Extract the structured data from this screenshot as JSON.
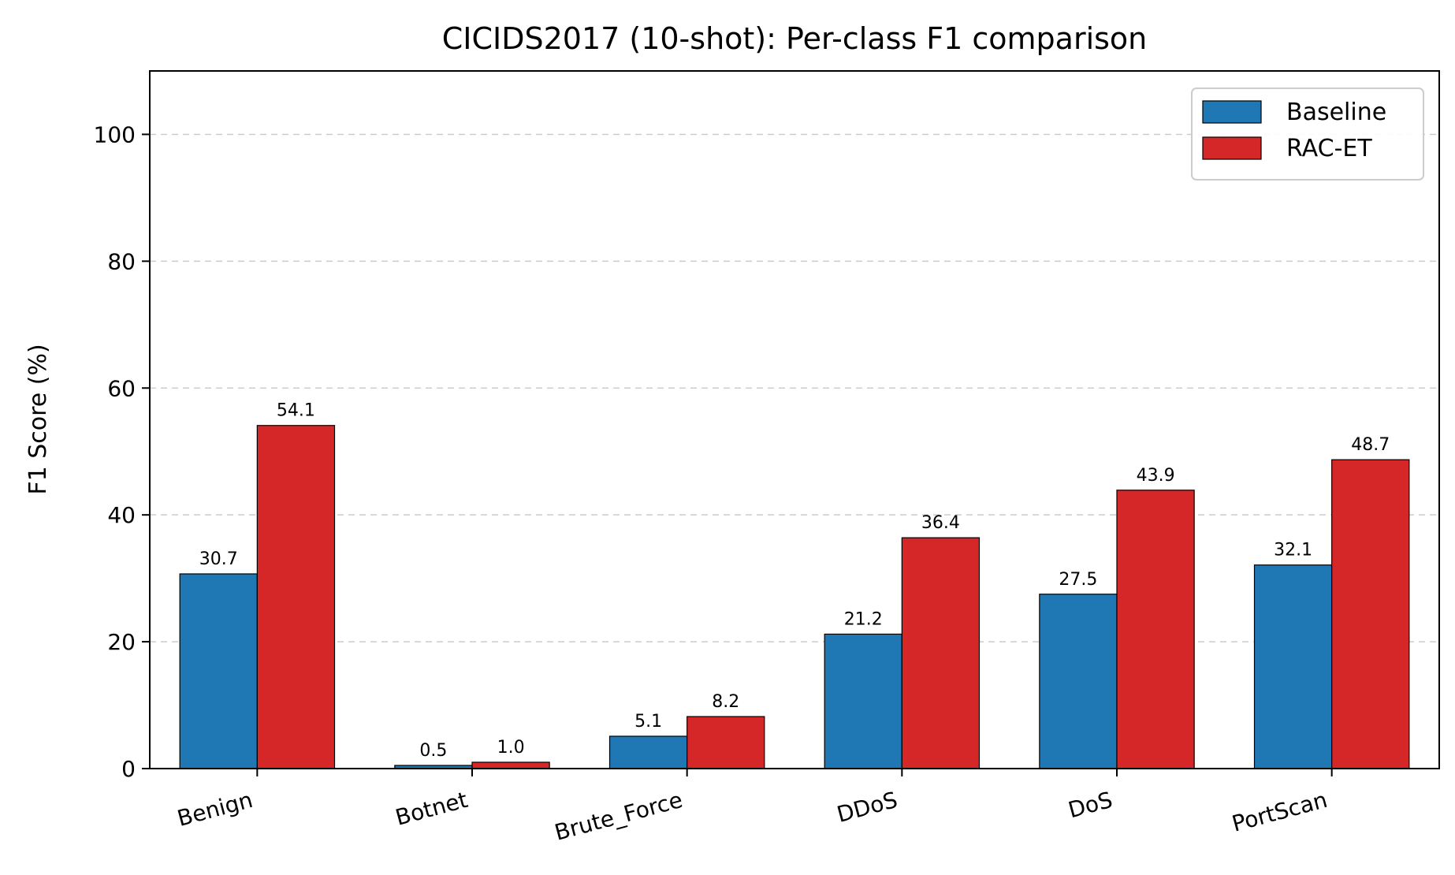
{
  "chart_data": {
    "type": "bar",
    "title": "CICIDS2017 (10-shot): Per-class F1 comparison",
    "xlabel": "",
    "ylabel": "F1 Score (%)",
    "ylim": [
      0,
      110
    ],
    "yticks": [
      0,
      20,
      40,
      60,
      80,
      100
    ],
    "grid": "y-dashed",
    "legend_position": "top-right",
    "categories": [
      "Benign",
      "Botnet",
      "Brute_Force",
      "DDoS",
      "DoS",
      "PortScan"
    ],
    "series": [
      {
        "name": "Baseline",
        "color": "#1f77b4",
        "values": [
          30.7,
          0.5,
          5.1,
          21.2,
          27.5,
          32.1
        ]
      },
      {
        "name": "RAC-ET",
        "color": "#d62728",
        "values": [
          54.1,
          1.0,
          8.2,
          36.4,
          43.9,
          48.7
        ]
      }
    ]
  }
}
